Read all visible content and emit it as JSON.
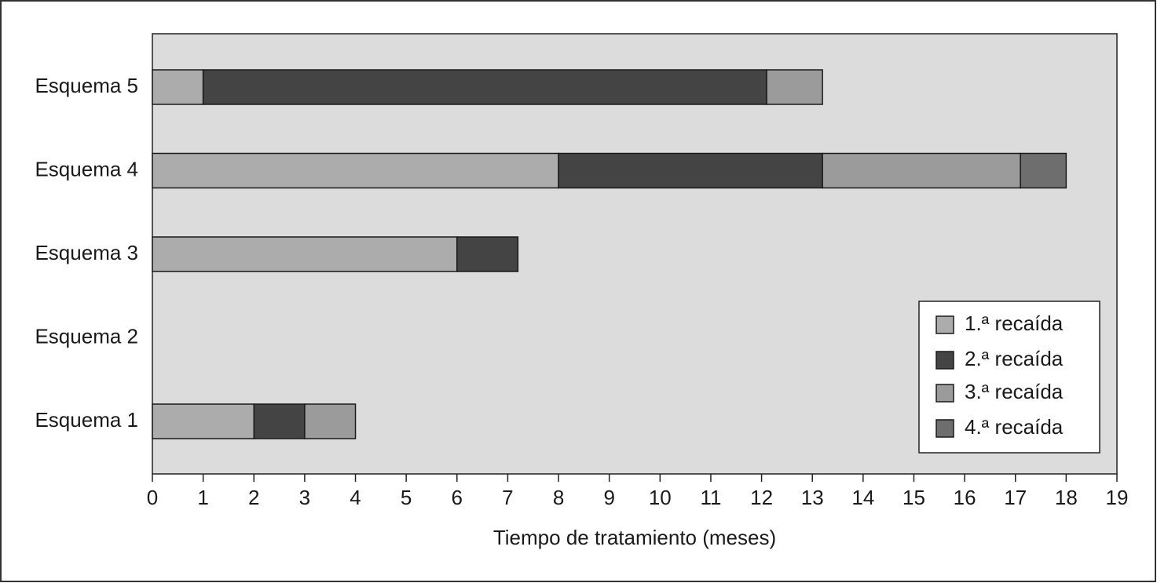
{
  "chart_data": {
    "type": "stacked-barh",
    "categories": [
      "Esquema 1",
      "Esquema 2",
      "Esquema 3",
      "Esquema 4",
      "Esquema 5"
    ],
    "series": [
      {
        "name": "1.ª recaída",
        "color": "#acacac",
        "values": [
          2,
          null,
          6,
          8,
          1
        ]
      },
      {
        "name": "2.ª recaída",
        "color": "#444444",
        "values": [
          1,
          null,
          1.2,
          5.2,
          11.1
        ]
      },
      {
        "name": "3.ª recaída",
        "color": "#9b9b9b",
        "values": [
          1,
          null,
          null,
          3.9,
          1.1
        ]
      },
      {
        "name": "4.ª recaída",
        "color": "#6e6e6e",
        "values": [
          null,
          null,
          null,
          0.9,
          null
        ]
      }
    ],
    "xlabel": "Tiempo de tratamiento (meses)",
    "xlim": [
      0,
      19
    ],
    "xticks": [
      0,
      1,
      2,
      3,
      4,
      5,
      6,
      7,
      8,
      9,
      10,
      11,
      12,
      13,
      14,
      15,
      16,
      17,
      18,
      19
    ],
    "legend": "lower right"
  }
}
